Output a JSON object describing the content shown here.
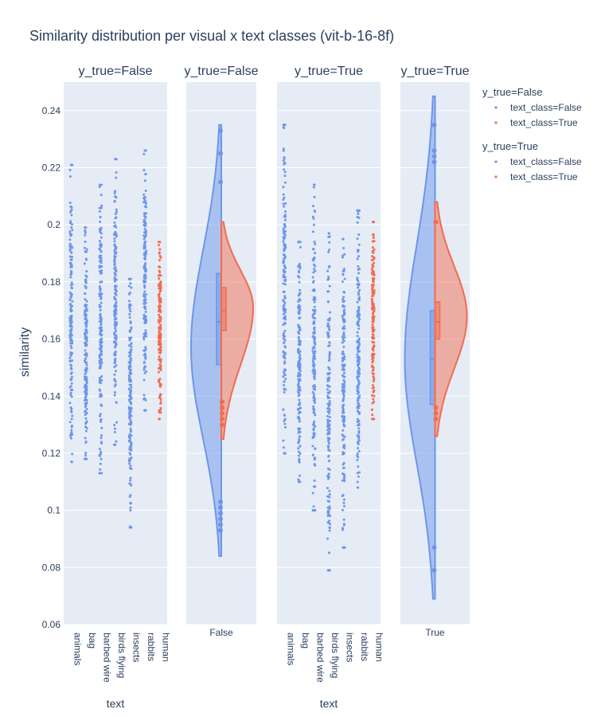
{
  "chart_data": {
    "type": "strip+violin",
    "title": "Similarity distribution per visual x text classes (vit-b-16-8f)",
    "ylabel": "similarity",
    "xlabel": "text",
    "ylim": [
      0.06,
      0.25
    ],
    "yticks": [
      0.06,
      0.08,
      0.1,
      0.12,
      0.14,
      0.16,
      0.18,
      0.2,
      0.22,
      0.24
    ],
    "text_categories": [
      "animals",
      "bag",
      "barbed wire",
      "birds flying",
      "insects",
      "rabbits",
      "human"
    ],
    "colors": {
      "text_class_false": "#6d96ea",
      "text_class_true": "#f26c4f"
    },
    "grid": true,
    "legend": {
      "position": "right",
      "groups": [
        {
          "title": "y_true=False",
          "items": [
            "text_class=False",
            "text_class=True"
          ]
        },
        {
          "title": "y_true=True",
          "items": [
            "text_class=False",
            "text_class=True"
          ]
        }
      ]
    },
    "facets": [
      {
        "title": "y_true=False",
        "kind": "strip",
        "strips": [
          {
            "category": "animals",
            "text_class": false,
            "min": 0.117,
            "max": 0.221
          },
          {
            "category": "bag",
            "text_class": false,
            "min": 0.118,
            "max": 0.199
          },
          {
            "category": "barbed wire",
            "text_class": false,
            "min": 0.113,
            "max": 0.214
          },
          {
            "category": "birds flying",
            "text_class": false,
            "min": 0.123,
            "max": 0.223
          },
          {
            "category": "insects",
            "text_class": false,
            "min": 0.094,
            "max": 0.181
          },
          {
            "category": "rabbits",
            "text_class": false,
            "min": 0.135,
            "max": 0.226
          },
          {
            "category": "human",
            "text_class": true,
            "min": 0.132,
            "max": 0.194
          }
        ]
      },
      {
        "title": "y_true=False",
        "kind": "violin",
        "xtick": "False",
        "left": {
          "text_class": false,
          "min": 0.084,
          "max": 0.235,
          "q1": 0.151,
          "median": 0.166,
          "q3": 0.183,
          "mode": 0.157,
          "outliers": [
            0.093,
            0.095,
            0.097,
            0.099,
            0.101,
            0.103,
            0.215,
            0.225,
            0.233
          ]
        },
        "right": {
          "text_class": true,
          "min": 0.125,
          "max": 0.201,
          "q1": 0.163,
          "median": 0.17,
          "q3": 0.178,
          "mode": 0.171,
          "outliers": [
            0.13,
            0.132,
            0.134,
            0.136,
            0.138
          ]
        }
      },
      {
        "title": "y_true=True",
        "kind": "strip",
        "strips": [
          {
            "category": "animals",
            "text_class": false,
            "min": 0.12,
            "max": 0.235
          },
          {
            "category": "bag",
            "text_class": false,
            "min": 0.11,
            "max": 0.194
          },
          {
            "category": "barbed wire",
            "text_class": false,
            "min": 0.1,
            "max": 0.214
          },
          {
            "category": "birds flying",
            "text_class": false,
            "min": 0.079,
            "max": 0.197
          },
          {
            "category": "insects",
            "text_class": false,
            "min": 0.087,
            "max": 0.195
          },
          {
            "category": "rabbits",
            "text_class": false,
            "min": 0.108,
            "max": 0.205
          },
          {
            "category": "human",
            "text_class": true,
            "min": 0.132,
            "max": 0.201
          }
        ]
      },
      {
        "title": "y_true=True",
        "kind": "violin",
        "xtick": "True",
        "left": {
          "text_class": false,
          "min": 0.069,
          "max": 0.245,
          "q1": 0.137,
          "median": 0.153,
          "q3": 0.17,
          "mode": 0.153,
          "outliers": [
            0.079,
            0.087,
            0.222,
            0.224,
            0.226,
            0.235
          ]
        },
        "right": {
          "text_class": true,
          "min": 0.126,
          "max": 0.208,
          "q1": 0.16,
          "median": 0.166,
          "q3": 0.173,
          "mode": 0.168,
          "outliers": [
            0.132,
            0.134,
            0.136,
            0.201
          ]
        }
      }
    ]
  }
}
